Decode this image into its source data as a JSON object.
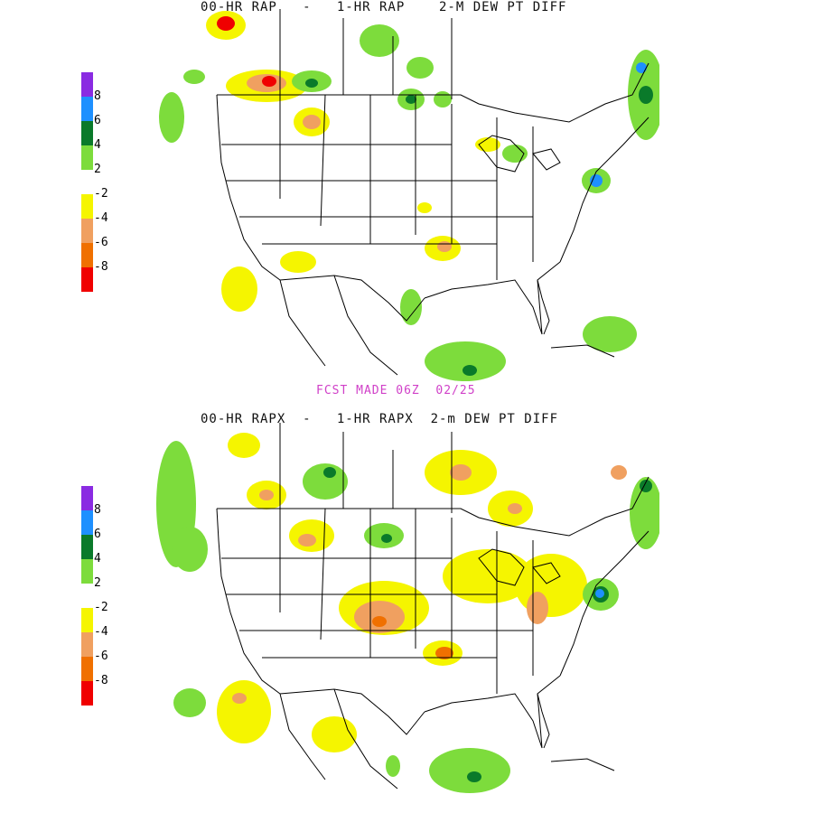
{
  "panels": [
    {
      "title": "00-HR RAP   -   1-HR RAP    2-M DEW PT DIFF",
      "footer": "FCST MADE 06Z  02/25"
    },
    {
      "title": "00-HR RAPX  -   1-HR RAPX  2-m DEW PT DIFF",
      "footer": ""
    }
  ],
  "legend": {
    "labels": [
      "8",
      "6",
      "4",
      "2",
      "-2",
      "-4",
      "-6",
      "-8"
    ],
    "colors": [
      "#8a2be2",
      "#1e90ff",
      "#0a7a2a",
      "#7ddc3c",
      "#ffffff",
      "#f5f500",
      "#f0a060",
      "#f07000",
      "#f00000"
    ]
  },
  "colors": {
    "green_light": "#7ddc3c",
    "green_dark": "#0a7a2a",
    "blue": "#1e90ff",
    "yellow": "#f5f500",
    "orange_light": "#f0a060",
    "orange": "#f07000",
    "red": "#f00000",
    "border": "#000000",
    "footer_text": "#d040c8"
  }
}
